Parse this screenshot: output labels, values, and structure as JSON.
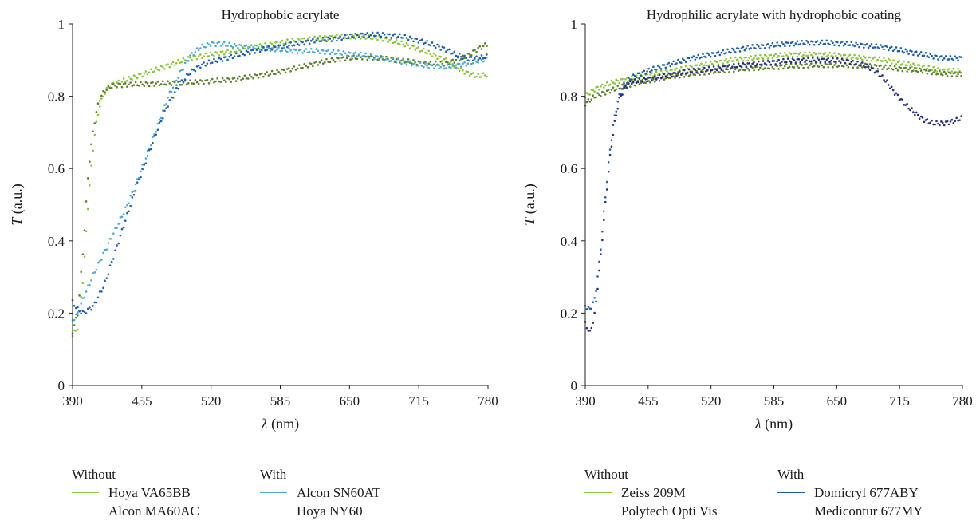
{
  "chart_data": [
    {
      "type": "scatter",
      "title": "Hydrophobic acrylate",
      "xlabel_symbol": "λ",
      "xlabel_unit": "(nm)",
      "ylabel_symbol": "T",
      "ylabel_unit": "(a.u.)",
      "xlim": [
        390,
        780
      ],
      "ylim": [
        0,
        1
      ],
      "xticks": [
        390,
        455,
        520,
        585,
        650,
        715,
        780
      ],
      "yticks": [
        0,
        0.2,
        0.4,
        0.6,
        0.8,
        1
      ],
      "ytick_labels": [
        "0",
        "0.2",
        "0.4",
        "0.6",
        "0.8",
        "1"
      ],
      "grid": false,
      "legend_position": "bottom",
      "legend_groups": [
        {
          "label": "Without",
          "series": [
            "Hoya VA65BB",
            "Alcon MA60AC"
          ]
        },
        {
          "label": "With",
          "series": [
            "Alcon SN60AT",
            "Hoya NY60"
          ]
        }
      ],
      "series": [
        {
          "name": "Hoya VA65BB",
          "color": "#8cc63f",
          "x": [
            390,
            395,
            400,
            405,
            410,
            415,
            420,
            425,
            430,
            440,
            450,
            460,
            470,
            480,
            490,
            500,
            520,
            540,
            560,
            580,
            600,
            620,
            640,
            660,
            680,
            700,
            720,
            740,
            750,
            760,
            770,
            780
          ],
          "y": [
            0.14,
            0.16,
            0.3,
            0.52,
            0.68,
            0.77,
            0.81,
            0.83,
            0.835,
            0.845,
            0.855,
            0.865,
            0.875,
            0.885,
            0.895,
            0.905,
            0.915,
            0.925,
            0.935,
            0.945,
            0.955,
            0.96,
            0.965,
            0.965,
            0.96,
            0.945,
            0.925,
            0.9,
            0.88,
            0.865,
            0.855,
            0.86
          ]
        },
        {
          "name": "Alcon MA60AC",
          "color": "#5b7f2e",
          "x": [
            390,
            395,
            400,
            405,
            410,
            415,
            420,
            425,
            430,
            440,
            450,
            460,
            480,
            500,
            520,
            540,
            560,
            580,
            600,
            620,
            640,
            660,
            680,
            700,
            720,
            740,
            760,
            770,
            780
          ],
          "y": [
            0.15,
            0.2,
            0.38,
            0.6,
            0.72,
            0.79,
            0.815,
            0.825,
            0.83,
            0.832,
            0.833,
            0.834,
            0.836,
            0.838,
            0.842,
            0.846,
            0.855,
            0.865,
            0.878,
            0.892,
            0.903,
            0.908,
            0.905,
            0.898,
            0.89,
            0.89,
            0.91,
            0.93,
            0.945
          ]
        },
        {
          "name": "Alcon SN60AT",
          "color": "#4fa8d0",
          "x": [
            390,
            395,
            400,
            410,
            420,
            430,
            440,
            450,
            460,
            470,
            480,
            490,
            500,
            510,
            520,
            530,
            540,
            560,
            580,
            600,
            620,
            640,
            660,
            680,
            700,
            720,
            740,
            760,
            780
          ],
          "y": [
            0.18,
            0.2,
            0.24,
            0.31,
            0.37,
            0.43,
            0.49,
            0.56,
            0.64,
            0.72,
            0.8,
            0.86,
            0.91,
            0.935,
            0.945,
            0.945,
            0.94,
            0.935,
            0.93,
            0.925,
            0.925,
            0.92,
            0.915,
            0.905,
            0.895,
            0.885,
            0.88,
            0.89,
            0.905
          ]
        },
        {
          "name": "Hoya NY60",
          "color": "#1f5fa8",
          "x": [
            390,
            395,
            400,
            405,
            410,
            420,
            430,
            440,
            450,
            460,
            470,
            480,
            490,
            500,
            510,
            520,
            540,
            560,
            580,
            600,
            620,
            640,
            660,
            680,
            700,
            720,
            740,
            750,
            760,
            770,
            780
          ],
          "y": [
            0.23,
            0.21,
            0.2,
            0.21,
            0.22,
            0.28,
            0.37,
            0.46,
            0.55,
            0.63,
            0.71,
            0.78,
            0.83,
            0.865,
            0.885,
            0.895,
            0.91,
            0.925,
            0.935,
            0.945,
            0.955,
            0.96,
            0.97,
            0.97,
            0.965,
            0.95,
            0.93,
            0.915,
            0.905,
            0.905,
            0.91
          ]
        }
      ]
    },
    {
      "type": "scatter",
      "title": "Hydrophilic acrylate with hydrophobic coating",
      "xlabel_symbol": "λ",
      "xlabel_unit": "(nm)",
      "ylabel_symbol": "T",
      "ylabel_unit": "(a.u.)",
      "xlim": [
        390,
        780
      ],
      "ylim": [
        0,
        1
      ],
      "xticks": [
        390,
        455,
        520,
        585,
        650,
        715,
        780
      ],
      "yticks": [
        0,
        0.2,
        0.4,
        0.6,
        0.8,
        1
      ],
      "ytick_labels": [
        "0",
        "0.2",
        "0.4",
        "0.6",
        "0.8",
        "1"
      ],
      "grid": false,
      "legend_position": "bottom",
      "legend_groups": [
        {
          "label": "Without",
          "series": [
            "Zeiss 209M",
            "Polytech Opti Vis"
          ]
        },
        {
          "label": "With",
          "series": [
            "Domicryl 677ABY",
            "Medicontur 677MY"
          ]
        }
      ],
      "series": [
        {
          "name": "Zeiss 209M",
          "color": "#8cc63f",
          "x": [
            390,
            400,
            410,
            420,
            430,
            440,
            460,
            480,
            500,
            520,
            540,
            560,
            580,
            600,
            620,
            640,
            660,
            680,
            700,
            720,
            740,
            760,
            780
          ],
          "y": [
            0.8,
            0.82,
            0.83,
            0.84,
            0.845,
            0.85,
            0.86,
            0.87,
            0.88,
            0.89,
            0.9,
            0.905,
            0.91,
            0.915,
            0.915,
            0.915,
            0.91,
            0.905,
            0.9,
            0.89,
            0.88,
            0.87,
            0.87
          ]
        },
        {
          "name": "Polytech Opti Vis",
          "color": "#5b7f2e",
          "x": [
            390,
            400,
            410,
            420,
            440,
            460,
            480,
            500,
            520,
            540,
            560,
            580,
            600,
            620,
            640,
            660,
            680,
            700,
            720,
            740,
            760,
            780
          ],
          "y": [
            0.78,
            0.8,
            0.81,
            0.82,
            0.835,
            0.845,
            0.855,
            0.862,
            0.868,
            0.873,
            0.877,
            0.88,
            0.883,
            0.885,
            0.886,
            0.886,
            0.884,
            0.88,
            0.875,
            0.87,
            0.862,
            0.86
          ]
        },
        {
          "name": "Domicryl 677ABY",
          "color": "#1f5fa8",
          "x": [
            390,
            395,
            400,
            405,
            410,
            415,
            420,
            425,
            430,
            435,
            440,
            450,
            460,
            480,
            500,
            520,
            540,
            560,
            580,
            600,
            620,
            640,
            660,
            680,
            700,
            720,
            740,
            760,
            780
          ],
          "y": [
            0.22,
            0.21,
            0.24,
            0.35,
            0.5,
            0.64,
            0.74,
            0.8,
            0.83,
            0.845,
            0.855,
            0.865,
            0.875,
            0.89,
            0.905,
            0.915,
            0.925,
            0.935,
            0.94,
            0.945,
            0.948,
            0.948,
            0.945,
            0.94,
            0.935,
            0.925,
            0.915,
            0.905,
            0.905
          ]
        },
        {
          "name": "Medicontur 677MY",
          "color": "#2a2f78",
          "x": [
            390,
            395,
            400,
            405,
            410,
            415,
            420,
            425,
            430,
            435,
            440,
            450,
            460,
            480,
            500,
            520,
            540,
            560,
            580,
            600,
            620,
            640,
            660,
            680,
            690,
            700,
            710,
            720,
            730,
            740,
            750,
            760,
            770,
            780
          ],
          "y": [
            0.17,
            0.145,
            0.2,
            0.33,
            0.48,
            0.62,
            0.72,
            0.79,
            0.82,
            0.835,
            0.84,
            0.845,
            0.85,
            0.86,
            0.87,
            0.875,
            0.882,
            0.888,
            0.893,
            0.898,
            0.9,
            0.9,
            0.897,
            0.885,
            0.87,
            0.845,
            0.81,
            0.78,
            0.755,
            0.735,
            0.725,
            0.725,
            0.73,
            0.74
          ]
        }
      ]
    }
  ]
}
